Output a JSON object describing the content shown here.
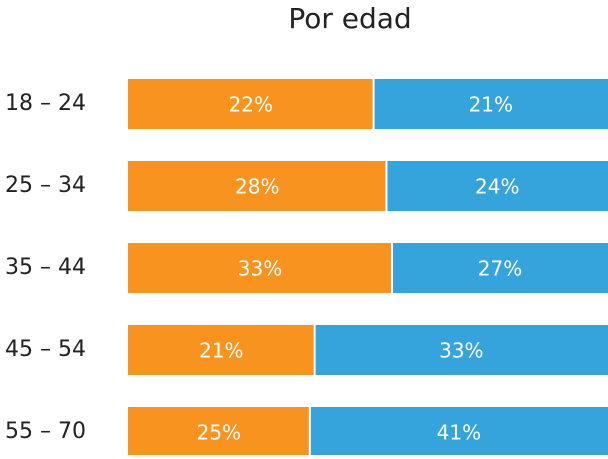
{
  "chart_data": {
    "type": "bar",
    "orientation": "horizontal",
    "stacking": "percent",
    "title": "Por edad",
    "categories": [
      "18 – 24",
      "25 – 34",
      "35 – 44",
      "45 – 54",
      "55 – 70"
    ],
    "series": [
      {
        "color": "#f7931e",
        "values": [
          22,
          28,
          33,
          21,
          25
        ],
        "value_labels": [
          "22%",
          "28%",
          "33%",
          "21%",
          "25%"
        ]
      },
      {
        "color": "#35a4dc",
        "values": [
          21,
          24,
          27,
          33,
          41
        ],
        "value_labels": [
          "21%",
          "24%",
          "27%",
          "33%",
          "41%"
        ]
      }
    ]
  }
}
